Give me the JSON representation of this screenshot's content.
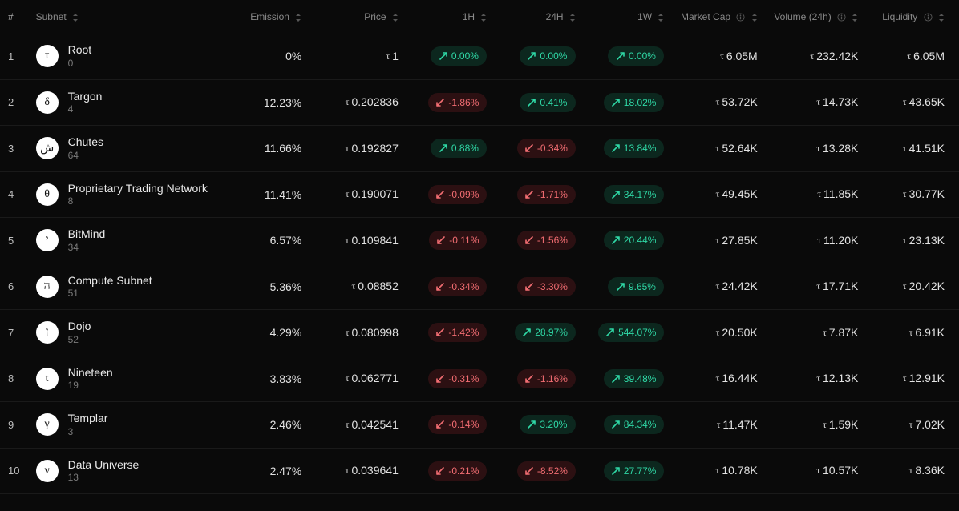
{
  "colors": {
    "background": "#0a0a0a",
    "text_primary": "#e2e2e2",
    "text_secondary": "#8a8a8a",
    "pill_up_bg": "rgba(16,94,70,0.35)",
    "pill_up_fg": "#2fd8a6",
    "pill_down_bg": "rgba(110,28,34,0.35)",
    "pill_down_fg": "#f26d72",
    "icon_bg": "#ffffff",
    "icon_fg": "#111111",
    "row_border": "#1a1a1a"
  },
  "tau_symbol": "τ",
  "headers": {
    "rank": "#",
    "subnet": "Subnet",
    "emission": "Emission",
    "price": "Price",
    "h1": "1H",
    "h24": "24H",
    "w1": "1W",
    "mcap": "Market Cap",
    "vol": "Volume (24h)",
    "liq": "Liquidity"
  },
  "rows": [
    {
      "rank": "1",
      "name": "Root",
      "sub": "0",
      "glyph": "τ",
      "emission": "0%",
      "price": "1",
      "h1": "0.00%",
      "h1_dir": "up",
      "h24": "0.00%",
      "h24_dir": "up",
      "w1": "0.00%",
      "w1_dir": "up",
      "mcap": "6.05M",
      "vol": "232.42K",
      "liq": "6.05M"
    },
    {
      "rank": "2",
      "name": "Targon",
      "sub": "4",
      "glyph": "δ",
      "emission": "12.23%",
      "price": "0.202836",
      "h1": "-1.86%",
      "h1_dir": "down",
      "h24": "0.41%",
      "h24_dir": "up",
      "w1": "18.02%",
      "w1_dir": "up",
      "mcap": "53.72K",
      "vol": "14.73K",
      "liq": "43.65K"
    },
    {
      "rank": "3",
      "name": "Chutes",
      "sub": "64",
      "glyph": "ش",
      "emission": "11.66%",
      "price": "0.192827",
      "h1": "0.88%",
      "h1_dir": "up",
      "h24": "-0.34%",
      "h24_dir": "down",
      "w1": "13.84%",
      "w1_dir": "up",
      "mcap": "52.64K",
      "vol": "13.28K",
      "liq": "41.51K"
    },
    {
      "rank": "4",
      "name": "Proprietary Trading Network",
      "sub": "8",
      "glyph": "θ",
      "emission": "11.41%",
      "price": "0.190071",
      "h1": "-0.09%",
      "h1_dir": "down",
      "h24": "-1.71%",
      "h24_dir": "down",
      "w1": "34.17%",
      "w1_dir": "up",
      "mcap": "49.45K",
      "vol": "11.85K",
      "liq": "30.77K"
    },
    {
      "rank": "5",
      "name": "BitMind",
      "sub": "34",
      "glyph": "י",
      "emission": "6.57%",
      "price": "0.109841",
      "h1": "-0.11%",
      "h1_dir": "down",
      "h24": "-1.56%",
      "h24_dir": "down",
      "w1": "20.44%",
      "w1_dir": "up",
      "mcap": "27.85K",
      "vol": "11.20K",
      "liq": "23.13K"
    },
    {
      "rank": "6",
      "name": "Compute Subnet",
      "sub": "51",
      "glyph": "ה",
      "emission": "5.36%",
      "price": "0.08852",
      "h1": "-0.34%",
      "h1_dir": "down",
      "h24": "-3.30%",
      "h24_dir": "down",
      "w1": "9.65%",
      "w1_dir": "up",
      "mcap": "24.42K",
      "vol": "17.71K",
      "liq": "20.42K"
    },
    {
      "rank": "7",
      "name": "Dojo",
      "sub": "52",
      "glyph": "ן",
      "emission": "4.29%",
      "price": "0.080998",
      "h1": "-1.42%",
      "h1_dir": "down",
      "h24": "28.97%",
      "h24_dir": "up",
      "w1": "544.07%",
      "w1_dir": "up",
      "mcap": "20.50K",
      "vol": "7.87K",
      "liq": "6.91K"
    },
    {
      "rank": "8",
      "name": "Nineteen",
      "sub": "19",
      "glyph": "t",
      "emission": "3.83%",
      "price": "0.062771",
      "h1": "-0.31%",
      "h1_dir": "down",
      "h24": "-1.16%",
      "h24_dir": "down",
      "w1": "39.48%",
      "w1_dir": "up",
      "mcap": "16.44K",
      "vol": "12.13K",
      "liq": "12.91K"
    },
    {
      "rank": "9",
      "name": "Templar",
      "sub": "3",
      "glyph": "γ",
      "emission": "2.46%",
      "price": "0.042541",
      "h1": "-0.14%",
      "h1_dir": "down",
      "h24": "3.20%",
      "h24_dir": "up",
      "w1": "84.34%",
      "w1_dir": "up",
      "mcap": "11.47K",
      "vol": "1.59K",
      "liq": "7.02K"
    },
    {
      "rank": "10",
      "name": "Data Universe",
      "sub": "13",
      "glyph": "ν",
      "emission": "2.47%",
      "price": "0.039641",
      "h1": "-0.21%",
      "h1_dir": "down",
      "h24": "-8.52%",
      "h24_dir": "down",
      "w1": "27.77%",
      "w1_dir": "up",
      "mcap": "10.78K",
      "vol": "10.57K",
      "liq": "8.36K"
    }
  ]
}
